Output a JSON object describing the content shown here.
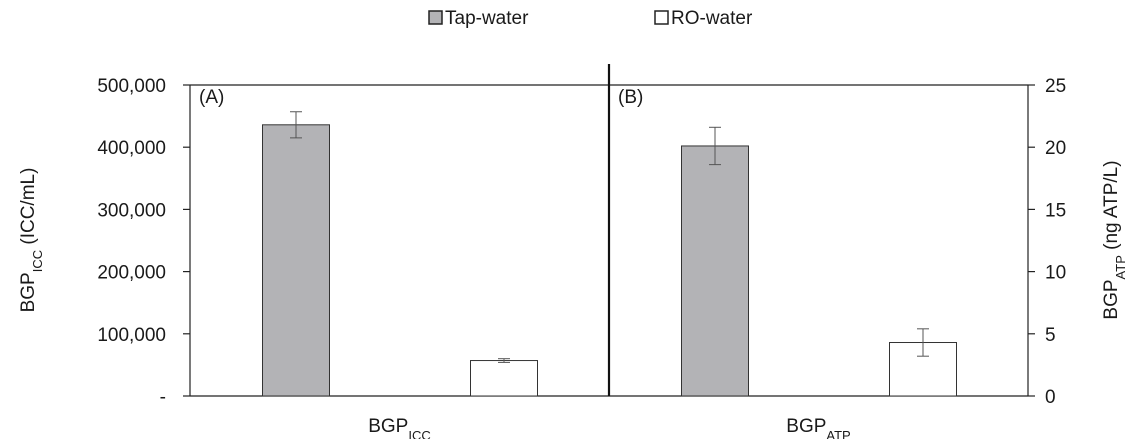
{
  "chart_data": {
    "type": "bar",
    "legend": {
      "placement": "top-center",
      "entries": [
        {
          "label": "Tap-water",
          "color": "#b3b3b6"
        },
        {
          "label": "RO-water",
          "color": "#ffffff"
        }
      ]
    },
    "panels": [
      {
        "label": "(A)",
        "x_category": {
          "base": "BGP",
          "sub": "ICC"
        },
        "ylabel": {
          "base": "BGP",
          "sub": "ICC",
          "rest": " (ICC/mL)"
        },
        "axis_side": "left",
        "ylim": [
          0,
          500000
        ],
        "yticks": [
          {
            "value": 0,
            "label": "-"
          },
          {
            "value": 100000,
            "label": "100,000"
          },
          {
            "value": 200000,
            "label": "200,000"
          },
          {
            "value": 300000,
            "label": "300,000"
          },
          {
            "value": 400000,
            "label": "400,000"
          },
          {
            "value": 500000,
            "label": "500,000"
          }
        ],
        "series": [
          {
            "name": "Tap-water",
            "value": 436000,
            "error": 21000
          },
          {
            "name": "RO-water",
            "value": 57000,
            "error": 3000
          }
        ]
      },
      {
        "label": "(B)",
        "x_category": {
          "base": "BGP",
          "sub": "ATP"
        },
        "ylabel": {
          "base": "BGP",
          "sub": "ATP",
          "rest": " (ng ATP/L)"
        },
        "axis_side": "right",
        "ylim": [
          0,
          25
        ],
        "yticks": [
          {
            "value": 0,
            "label": "0"
          },
          {
            "value": 5,
            "label": "5"
          },
          {
            "value": 10,
            "label": "10"
          },
          {
            "value": 15,
            "label": "15"
          },
          {
            "value": 20,
            "label": "20"
          },
          {
            "value": 25,
            "label": "25"
          }
        ],
        "series": [
          {
            "name": "Tap-water",
            "value": 20.1,
            "error": 1.5
          },
          {
            "name": "RO-water",
            "value": 4.3,
            "error": 1.1
          }
        ]
      }
    ],
    "colors": {
      "tap_fill": "#b3b3b6",
      "ro_fill": "#ffffff",
      "stroke": "#333333",
      "error_bar": "#555555"
    },
    "grid": false
  }
}
